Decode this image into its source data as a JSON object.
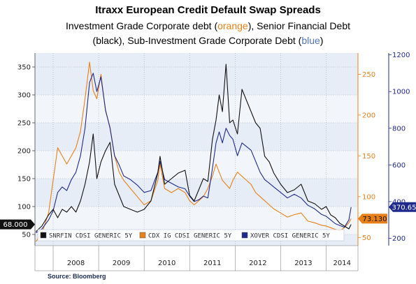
{
  "header": {
    "title": "Itraxx European Credit Default  Swap Spreads",
    "subtitle_line1_prefix": "Investment Grade Corporate debt (",
    "subtitle_line1_orange": "orange",
    "subtitle_line1_mid": "), Senior Financial Debt",
    "subtitle_line2_prefix": "(black), Sub-Investment Grade Corporate Debt (",
    "subtitle_line2_blue": "blue",
    "subtitle_line2_suffix": ")"
  },
  "source": "Source:  Bloomberg",
  "colors": {
    "black_series": "#111111",
    "orange_series": "#e8801a",
    "blue_series": "#1f2a8c",
    "plot_bg": "#e6edf6",
    "plot_bg_alt": "#f2f6fb"
  },
  "chart_data": {
    "type": "line",
    "title": "",
    "xlabel": "",
    "ylabel": "",
    "x_tick_labels": [
      "2008",
      "2009",
      "2010",
      "2011",
      "2012",
      "2013",
      "2014"
    ],
    "x_range": [
      2007.6,
      2014.7
    ],
    "axes": {
      "left": {
        "ticks": [
          50,
          100,
          150,
          200,
          250,
          300,
          350
        ],
        "range": [
          30,
          375
        ]
      },
      "middle": {
        "ticks": [
          50,
          100,
          150,
          200,
          250
        ],
        "range": [
          40,
          276
        ]
      },
      "right": {
        "ticks": [
          200,
          400,
          600,
          800,
          1000,
          1200
        ],
        "range": [
          160,
          1210
        ]
      }
    },
    "grid": true,
    "legend_position": "bottom",
    "legend": [
      {
        "label": "SNRFIN CDSI GENERIC 5Y",
        "color": "#111111"
      },
      {
        "label": "CDX IG CDSI GENERIC 5Y",
        "color": "#e8801a"
      },
      {
        "label": "XOVER CDSI GENERIC 5Y",
        "color": "#1f2a8c"
      }
    ],
    "last_value_badges": {
      "black": "68.000",
      "orange": "73.130",
      "blue": "370.65"
    },
    "series": [
      {
        "key": "black",
        "axis": "left",
        "x": [
          2007.62,
          2007.75,
          2007.9,
          2008.0,
          2008.1,
          2008.2,
          2008.3,
          2008.4,
          2008.5,
          2008.6,
          2008.7,
          2008.8,
          2008.88,
          2008.96,
          2009.05,
          2009.15,
          2009.25,
          2009.35,
          2009.45,
          2009.55,
          2009.7,
          2009.85,
          2010.0,
          2010.15,
          2010.3,
          2010.35,
          2010.45,
          2010.6,
          2010.75,
          2010.9,
          2011.0,
          2011.1,
          2011.2,
          2011.3,
          2011.4,
          2011.5,
          2011.58,
          2011.65,
          2011.72,
          2011.8,
          2011.88,
          2011.95,
          2012.05,
          2012.15,
          2012.25,
          2012.35,
          2012.45,
          2012.55,
          2012.65,
          2012.75,
          2012.85,
          2013.0,
          2013.15,
          2013.3,
          2013.45,
          2013.6,
          2013.75,
          2013.9,
          2014.0,
          2014.1,
          2014.2,
          2014.3,
          2014.4,
          2014.5,
          2014.55
        ],
        "values": [
          55,
          65,
          85,
          95,
          80,
          95,
          90,
          100,
          90,
          110,
          140,
          180,
          230,
          150,
          180,
          200,
          215,
          140,
          120,
          100,
          95,
          90,
          95,
          110,
          160,
          190,
          140,
          150,
          160,
          165,
          120,
          110,
          130,
          150,
          145,
          220,
          255,
          300,
          270,
          355,
          250,
          255,
          230,
          310,
          290,
          270,
          250,
          240,
          190,
          180,
          160,
          140,
          125,
          130,
          140,
          110,
          105,
          95,
          100,
          85,
          80,
          70,
          65,
          60,
          68
        ]
      },
      {
        "key": "orange",
        "axis": "middle",
        "x": [
          2007.62,
          2007.75,
          2007.9,
          2008.0,
          2008.1,
          2008.2,
          2008.3,
          2008.4,
          2008.5,
          2008.6,
          2008.7,
          2008.8,
          2008.88,
          2008.96,
          2009.05,
          2009.15,
          2009.25,
          2009.35,
          2009.45,
          2009.55,
          2009.7,
          2009.85,
          2010.0,
          2010.15,
          2010.3,
          2010.35,
          2010.45,
          2010.6,
          2010.75,
          2010.9,
          2011.0,
          2011.1,
          2011.2,
          2011.3,
          2011.4,
          2011.5,
          2011.58,
          2011.65,
          2011.72,
          2011.8,
          2011.88,
          2011.95,
          2012.05,
          2012.15,
          2012.25,
          2012.35,
          2012.45,
          2012.55,
          2012.65,
          2012.75,
          2012.85,
          2013.0,
          2013.15,
          2013.3,
          2013.45,
          2013.6,
          2013.75,
          2013.9,
          2014.0,
          2014.1,
          2014.2,
          2014.3,
          2014.4,
          2014.5,
          2014.55
        ],
        "values": [
          45,
          55,
          80,
          120,
          160,
          150,
          140,
          150,
          160,
          180,
          220,
          265,
          230,
          220,
          250,
          205,
          185,
          150,
          130,
          120,
          110,
          100,
          90,
          95,
          120,
          140,
          110,
          105,
          110,
          105,
          95,
          90,
          95,
          100,
          110,
          125,
          140,
          130,
          120,
          115,
          110,
          120,
          130,
          125,
          120,
          115,
          105,
          100,
          95,
          90,
          85,
          80,
          75,
          78,
          80,
          70,
          68,
          65,
          64,
          62,
          60,
          58,
          62,
          68,
          73
        ]
      },
      {
        "key": "blue",
        "axis": "right",
        "x": [
          2007.62,
          2007.75,
          2007.9,
          2008.0,
          2008.1,
          2008.2,
          2008.3,
          2008.4,
          2008.5,
          2008.6,
          2008.7,
          2008.8,
          2008.88,
          2008.96,
          2009.05,
          2009.15,
          2009.25,
          2009.35,
          2009.45,
          2009.55,
          2009.7,
          2009.85,
          2010.0,
          2010.15,
          2010.3,
          2010.35,
          2010.45,
          2010.6,
          2010.75,
          2010.9,
          2011.0,
          2011.1,
          2011.2,
          2011.3,
          2011.4,
          2011.5,
          2011.58,
          2011.65,
          2011.72,
          2011.8,
          2011.88,
          2011.95,
          2012.05,
          2012.15,
          2012.25,
          2012.35,
          2012.45,
          2012.55,
          2012.65,
          2012.75,
          2012.85,
          2013.0,
          2013.15,
          2013.3,
          2013.45,
          2013.6,
          2013.75,
          2013.9,
          2014.0,
          2014.1,
          2014.2,
          2014.3,
          2014.4,
          2014.5,
          2014.55
        ],
        "values": [
          230,
          250,
          300,
          350,
          450,
          480,
          460,
          520,
          560,
          650,
          800,
          1050,
          1100,
          1000,
          1080,
          900,
          800,
          650,
          600,
          540,
          520,
          490,
          450,
          460,
          560,
          620,
          520,
          500,
          480,
          470,
          430,
          400,
          410,
          430,
          420,
          580,
          720,
          780,
          720,
          800,
          760,
          740,
          650,
          720,
          700,
          680,
          620,
          560,
          520,
          500,
          480,
          450,
          420,
          440,
          420,
          380,
          360,
          330,
          320,
          300,
          280,
          270,
          260,
          300,
          370
        ]
      }
    ]
  }
}
